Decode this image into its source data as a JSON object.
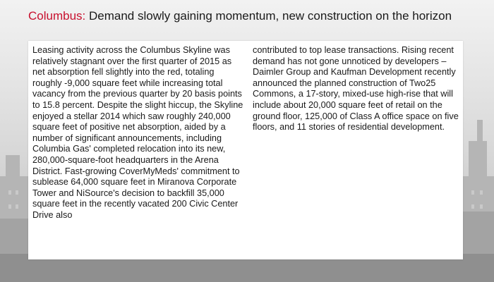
{
  "header": {
    "title_accent": "Columbus:",
    "title_rest": " Demand slowly gaining momentum, new construction on the horizon",
    "accent_color": "#c8102e"
  },
  "body": {
    "column_left": "Leasing activity across the Columbus Skyline was relatively stagnant over the first quarter of 2015 as net absorption fell slightly into the red, totaling roughly -9,000 square feet while increasing total vacancy from the previous quarter by 20 basis points to 15.8 percent. Despite the slight hiccup, the Skyline enjoyed a stellar 2014 which saw roughly 240,000 square feet of positive net absorption, aided by a number of significant announcements, including Columbia Gas' completed relocation into its new, 280,000-square-foot headquarters in the Arena District. Fast-growing CoverMyMeds' commitment to sublease 64,000 square feet in Miranova Corporate Tower and NiSource's decision to backfill 35,000 square feet in the recently vacated 200 Civic Center Drive also",
    "column_right": "contributed to top lease transactions. Rising recent demand has not gone unnoticed by developers –Daimler Group and Kaufman Development recently announced the planned construction of Two25 Commons, a 17-story, mixed-use high-rise that will include about 20,000 square feet of retail on the ground floor, 125,000 of Class A office space on five floors, and 11 stories of residential development."
  }
}
